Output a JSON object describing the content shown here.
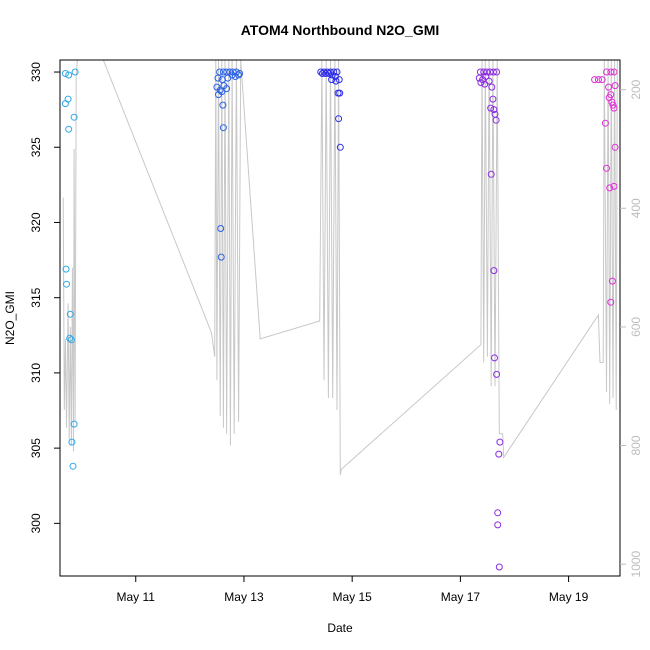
{
  "chart_data": {
    "type": "scatter",
    "title": "ATOM4 Northbound N2O_GMI",
    "xlabel": "Date",
    "ylabel": "N2O_GMI",
    "x_unit": "day-of-May",
    "xlim": [
      9.6,
      19.95
    ],
    "ylim": [
      296.5,
      330.8
    ],
    "x_ticks": [
      {
        "value": 11,
        "label": "May 11"
      },
      {
        "value": 13,
        "label": "May 13"
      },
      {
        "value": 15,
        "label": "May 15"
      },
      {
        "value": 17,
        "label": "May 17"
      },
      {
        "value": 19,
        "label": "May 19"
      }
    ],
    "y_ticks": [
      300,
      305,
      310,
      315,
      320,
      325,
      330
    ],
    "right_axis": {
      "range": [
        1020,
        150
      ],
      "ticks": [
        200,
        400,
        600,
        800,
        1000
      ],
      "color": "#bdbdbd"
    },
    "grid": false,
    "legend": "none",
    "points": [
      {
        "x": 9.7,
        "y": 329.9,
        "color": "#2ea8e8"
      },
      {
        "x": 9.76,
        "y": 329.8,
        "color": "#2ea8e8"
      },
      {
        "x": 9.88,
        "y": 330.0,
        "color": "#2ea8e8"
      },
      {
        "x": 9.7,
        "y": 327.9,
        "color": "#2ea8e8"
      },
      {
        "x": 9.75,
        "y": 328.2,
        "color": "#2ea8e8"
      },
      {
        "x": 9.86,
        "y": 327.0,
        "color": "#2ea8e8"
      },
      {
        "x": 9.76,
        "y": 326.2,
        "color": "#2ea8e8"
      },
      {
        "x": 9.71,
        "y": 316.9,
        "color": "#2ea8e8"
      },
      {
        "x": 9.72,
        "y": 315.9,
        "color": "#2ea8e8"
      },
      {
        "x": 9.79,
        "y": 313.9,
        "color": "#2ea8e8"
      },
      {
        "x": 9.78,
        "y": 312.3,
        "color": "#2ea8e8"
      },
      {
        "x": 9.81,
        "y": 312.2,
        "color": "#2ea8e8"
      },
      {
        "x": 9.86,
        "y": 306.6,
        "color": "#2ea8e8"
      },
      {
        "x": 9.82,
        "y": 305.4,
        "color": "#2ea8e8"
      },
      {
        "x": 9.84,
        "y": 303.8,
        "color": "#2ea8e8"
      },
      {
        "x": 12.55,
        "y": 330.0,
        "color": "#2b62e6"
      },
      {
        "x": 12.62,
        "y": 330.0,
        "color": "#2b62e6"
      },
      {
        "x": 12.68,
        "y": 330.0,
        "color": "#2b62e6"
      },
      {
        "x": 12.74,
        "y": 330.0,
        "color": "#2b62e6"
      },
      {
        "x": 12.8,
        "y": 330.0,
        "color": "#2b62e6"
      },
      {
        "x": 12.86,
        "y": 330.0,
        "color": "#2b62e6"
      },
      {
        "x": 12.92,
        "y": 329.9,
        "color": "#2b62e6"
      },
      {
        "x": 12.52,
        "y": 329.6,
        "color": "#2b62e6"
      },
      {
        "x": 12.6,
        "y": 329.5,
        "color": "#2b62e6"
      },
      {
        "x": 12.7,
        "y": 329.6,
        "color": "#2b62e6"
      },
      {
        "x": 12.78,
        "y": 329.8,
        "color": "#2b62e6"
      },
      {
        "x": 12.84,
        "y": 329.7,
        "color": "#2b62e6"
      },
      {
        "x": 12.9,
        "y": 329.8,
        "color": "#2b62e6"
      },
      {
        "x": 12.5,
        "y": 329.0,
        "color": "#2b62e6"
      },
      {
        "x": 12.56,
        "y": 328.8,
        "color": "#2b62e6"
      },
      {
        "x": 12.63,
        "y": 329.1,
        "color": "#2b62e6"
      },
      {
        "x": 12.68,
        "y": 328.9,
        "color": "#2b62e6"
      },
      {
        "x": 12.53,
        "y": 328.5,
        "color": "#2b62e6"
      },
      {
        "x": 12.59,
        "y": 328.7,
        "color": "#2b62e6"
      },
      {
        "x": 12.61,
        "y": 327.8,
        "color": "#2b62e6"
      },
      {
        "x": 12.62,
        "y": 326.3,
        "color": "#2b62e6"
      },
      {
        "x": 12.57,
        "y": 319.6,
        "color": "#2b62e6"
      },
      {
        "x": 12.58,
        "y": 317.7,
        "color": "#2b62e6"
      },
      {
        "x": 14.42,
        "y": 330.0,
        "color": "#2c2ee8"
      },
      {
        "x": 14.48,
        "y": 330.0,
        "color": "#2c2ee8"
      },
      {
        "x": 14.54,
        "y": 330.0,
        "color": "#2c2ee8"
      },
      {
        "x": 14.6,
        "y": 330.0,
        "color": "#2c2ee8"
      },
      {
        "x": 14.66,
        "y": 330.0,
        "color": "#2c2ee8"
      },
      {
        "x": 14.72,
        "y": 330.0,
        "color": "#2c2ee8"
      },
      {
        "x": 14.45,
        "y": 329.9,
        "color": "#2c2ee8"
      },
      {
        "x": 14.51,
        "y": 329.9,
        "color": "#2c2ee8"
      },
      {
        "x": 14.57,
        "y": 329.9,
        "color": "#2c2ee8"
      },
      {
        "x": 14.63,
        "y": 329.8,
        "color": "#2c2ee8"
      },
      {
        "x": 14.69,
        "y": 329.7,
        "color": "#2c2ee8"
      },
      {
        "x": 14.62,
        "y": 329.5,
        "color": "#2c2ee8"
      },
      {
        "x": 14.7,
        "y": 329.4,
        "color": "#2c2ee8"
      },
      {
        "x": 14.76,
        "y": 329.5,
        "color": "#2c2ee8"
      },
      {
        "x": 14.74,
        "y": 328.6,
        "color": "#2c2ee8"
      },
      {
        "x": 14.77,
        "y": 328.6,
        "color": "#2c2ee8"
      },
      {
        "x": 14.75,
        "y": 326.9,
        "color": "#2c2ee8"
      },
      {
        "x": 14.78,
        "y": 325.0,
        "color": "#2c2ee8"
      },
      {
        "x": 17.37,
        "y": 330.0,
        "color": "#8b2ce0"
      },
      {
        "x": 17.43,
        "y": 330.0,
        "color": "#8b2ce0"
      },
      {
        "x": 17.49,
        "y": 330.0,
        "color": "#8b2ce0"
      },
      {
        "x": 17.55,
        "y": 330.0,
        "color": "#8b2ce0"
      },
      {
        "x": 17.61,
        "y": 330.0,
        "color": "#8b2ce0"
      },
      {
        "x": 17.67,
        "y": 330.0,
        "color": "#8b2ce0"
      },
      {
        "x": 17.35,
        "y": 329.6,
        "color": "#8b2ce0"
      },
      {
        "x": 17.41,
        "y": 329.5,
        "color": "#8b2ce0"
      },
      {
        "x": 17.47,
        "y": 329.7,
        "color": "#8b2ce0"
      },
      {
        "x": 17.53,
        "y": 329.4,
        "color": "#8b2ce0"
      },
      {
        "x": 17.38,
        "y": 329.3,
        "color": "#8b2ce0"
      },
      {
        "x": 17.45,
        "y": 329.2,
        "color": "#8b2ce0"
      },
      {
        "x": 17.58,
        "y": 329.0,
        "color": "#8b2ce0"
      },
      {
        "x": 17.6,
        "y": 328.2,
        "color": "#8b2ce0"
      },
      {
        "x": 17.56,
        "y": 327.6,
        "color": "#8b2ce0"
      },
      {
        "x": 17.62,
        "y": 327.5,
        "color": "#8b2ce0"
      },
      {
        "x": 17.64,
        "y": 327.2,
        "color": "#8b2ce0"
      },
      {
        "x": 17.66,
        "y": 326.8,
        "color": "#8b2ce0"
      },
      {
        "x": 17.57,
        "y": 323.2,
        "color": "#8b2ce0"
      },
      {
        "x": 17.62,
        "y": 316.8,
        "color": "#8b2ce0"
      },
      {
        "x": 17.63,
        "y": 311.0,
        "color": "#8b2ce0"
      },
      {
        "x": 17.67,
        "y": 309.9,
        "color": "#8b2ce0"
      },
      {
        "x": 17.73,
        "y": 305.4,
        "color": "#8b2ce0"
      },
      {
        "x": 17.71,
        "y": 304.6,
        "color": "#8b2ce0"
      },
      {
        "x": 17.69,
        "y": 300.7,
        "color": "#8b2ce0"
      },
      {
        "x": 17.69,
        "y": 299.9,
        "color": "#8b2ce0"
      },
      {
        "x": 17.72,
        "y": 297.1,
        "color": "#8b2ce0"
      },
      {
        "x": 19.48,
        "y": 329.5,
        "color": "#e02ed6"
      },
      {
        "x": 19.55,
        "y": 329.5,
        "color": "#e02ed6"
      },
      {
        "x": 19.62,
        "y": 329.5,
        "color": "#e02ed6"
      },
      {
        "x": 19.7,
        "y": 330.0,
        "color": "#e02ed6"
      },
      {
        "x": 19.78,
        "y": 330.0,
        "color": "#e02ed6"
      },
      {
        "x": 19.84,
        "y": 330.0,
        "color": "#e02ed6"
      },
      {
        "x": 19.74,
        "y": 329.0,
        "color": "#e02ed6"
      },
      {
        "x": 19.86,
        "y": 329.1,
        "color": "#e02ed6"
      },
      {
        "x": 19.78,
        "y": 328.5,
        "color": "#e02ed6"
      },
      {
        "x": 19.75,
        "y": 328.3,
        "color": "#e02ed6"
      },
      {
        "x": 19.8,
        "y": 328.0,
        "color": "#e02ed6"
      },
      {
        "x": 19.82,
        "y": 327.8,
        "color": "#e02ed6"
      },
      {
        "x": 19.84,
        "y": 327.6,
        "color": "#e02ed6"
      },
      {
        "x": 19.68,
        "y": 326.6,
        "color": "#e02ed6"
      },
      {
        "x": 19.86,
        "y": 325.0,
        "color": "#e02ed6"
      },
      {
        "x": 19.7,
        "y": 323.6,
        "color": "#e02ed6"
      },
      {
        "x": 19.76,
        "y": 322.3,
        "color": "#e02ed6"
      },
      {
        "x": 19.84,
        "y": 322.4,
        "color": "#e02ed6"
      },
      {
        "x": 19.81,
        "y": 316.1,
        "color": "#e02ed6"
      },
      {
        "x": 19.78,
        "y": 314.7,
        "color": "#e02ed6"
      }
    ],
    "flight_path": [
      [
        9.66,
        382
      ],
      [
        9.68,
        740
      ],
      [
        9.7,
        620
      ],
      [
        9.72,
        770
      ],
      [
        9.75,
        560
      ],
      [
        9.77,
        790
      ],
      [
        9.79,
        600
      ],
      [
        9.81,
        800
      ],
      [
        9.83,
        500
      ],
      [
        9.85,
        810
      ],
      [
        9.86,
        300
      ],
      [
        9.88,
        760
      ],
      [
        9.9,
        180
      ],
      [
        9.92,
        130
      ],
      [
        10.4,
        130
      ],
      [
        12.4,
        610
      ],
      [
        12.46,
        650
      ],
      [
        12.48,
        130
      ],
      [
        12.5,
        690
      ],
      [
        12.53,
        130
      ],
      [
        12.56,
        750
      ],
      [
        12.59,
        130
      ],
      [
        12.62,
        770
      ],
      [
        12.65,
        130
      ],
      [
        12.68,
        780
      ],
      [
        12.72,
        130
      ],
      [
        12.75,
        800
      ],
      [
        12.78,
        130
      ],
      [
        12.82,
        780
      ],
      [
        12.86,
        130
      ],
      [
        12.9,
        760
      ],
      [
        12.94,
        130
      ],
      [
        13.3,
        620
      ],
      [
        14.4,
        590
      ],
      [
        14.44,
        130
      ],
      [
        14.48,
        690
      ],
      [
        14.52,
        130
      ],
      [
        14.56,
        720
      ],
      [
        14.6,
        130
      ],
      [
        14.64,
        720
      ],
      [
        14.68,
        130
      ],
      [
        14.72,
        740
      ],
      [
        14.75,
        130
      ],
      [
        14.78,
        850
      ],
      [
        14.8,
        840
      ],
      [
        17.38,
        630
      ],
      [
        17.4,
        130
      ],
      [
        17.43,
        660
      ],
      [
        17.46,
        130
      ],
      [
        17.5,
        650
      ],
      [
        17.53,
        130
      ],
      [
        17.57,
        700
      ],
      [
        17.6,
        130
      ],
      [
        17.64,
        700
      ],
      [
        17.68,
        130
      ],
      [
        17.72,
        780
      ],
      [
        17.78,
        780
      ],
      [
        17.8,
        820
      ],
      [
        19.55,
        580
      ],
      [
        19.58,
        660
      ],
      [
        19.64,
        660
      ],
      [
        19.66,
        130
      ],
      [
        19.7,
        710
      ],
      [
        19.73,
        130
      ],
      [
        19.76,
        730
      ],
      [
        19.79,
        130
      ],
      [
        19.82,
        720
      ],
      [
        19.85,
        130
      ],
      [
        19.88,
        740
      ],
      [
        19.9,
        130
      ]
    ]
  }
}
